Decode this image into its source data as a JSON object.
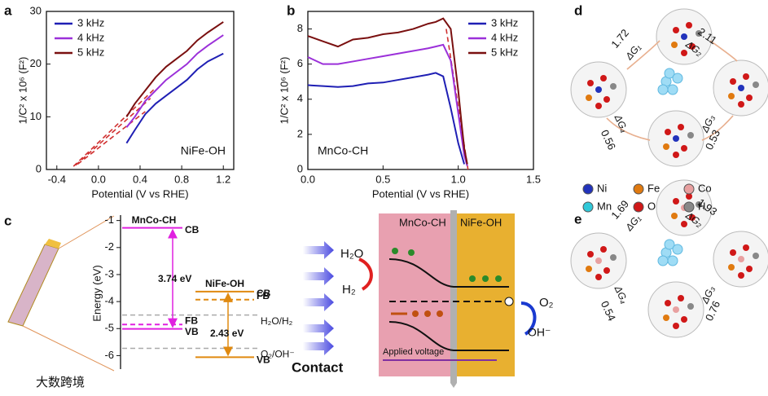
{
  "panel_labels": [
    "a",
    "b",
    "c",
    "d",
    "e"
  ],
  "chart_data": [
    {
      "type": "line",
      "xlabel": "Potential (V vs RHE)",
      "ylabel": "1/C² x 10⁶ (F²)",
      "annotation": "NiFe-OH",
      "annotation_color": "#1a1a9a",
      "legend": "upper left",
      "x": [
        0.27,
        0.35,
        0.45,
        0.55,
        0.65,
        0.75,
        0.85,
        0.95,
        1.05,
        1.2
      ],
      "series": [
        {
          "name": "3 kHz",
          "color": "#1f1fb4",
          "values": [
            5,
            7.5,
            10.5,
            12.5,
            14,
            15.5,
            17,
            19,
            20.5,
            22
          ]
        },
        {
          "name": "4 kHz",
          "color": "#9b30d9",
          "values": [
            8,
            10,
            13,
            15,
            17,
            18.5,
            20,
            22,
            23.5,
            25.5
          ]
        },
        {
          "name": "5 kHz",
          "color": "#7a1010",
          "values": [
            10,
            12.5,
            15,
            17.5,
            19.5,
            21,
            22.5,
            24.5,
            26,
            28
          ]
        }
      ],
      "fit_color": "#d03030",
      "fits": [
        {
          "x": [
            -0.2,
            0.45
          ],
          "values": [
            1,
            11
          ]
        },
        {
          "x": [
            -0.22,
            0.5
          ],
          "values": [
            0.8,
            13.5
          ]
        },
        {
          "x": [
            -0.24,
            0.55
          ],
          "values": [
            0.6,
            15.5
          ]
        }
      ],
      "xlim": [
        -0.5,
        1.3
      ],
      "xticks": [
        -0.4,
        {
          "value": 0,
          "label": "0.0"
        },
        0.4,
        0.8,
        1.2
      ],
      "ylim": [
        0,
        30
      ],
      "yticks": [
        0,
        10,
        20,
        30
      ]
    },
    {
      "type": "line",
      "xlabel": "Potential (V vs RHE)",
      "ylabel": "1/C² x 10⁶ (F²)",
      "annotation": "MnCo-CH",
      "annotation_color": "#1aa08a",
      "legend": "upper right",
      "x": [
        0,
        0.1,
        0.2,
        0.3,
        0.4,
        0.5,
        0.6,
        0.7,
        0.8,
        0.85,
        0.9,
        0.95,
        1.0,
        1.02,
        1.04,
        1.06
      ],
      "series": [
        {
          "name": "3 kHz",
          "color": "#1f1fb4",
          "values": [
            4.8,
            4.75,
            4.7,
            4.75,
            4.9,
            4.95,
            5.1,
            5.25,
            5.4,
            5.5,
            5.3,
            3.5,
            1.5,
            0.9,
            0.3,
            null
          ]
        },
        {
          "name": "4 kHz",
          "color": "#9b30d9",
          "values": [
            6.4,
            6.0,
            6.0,
            6.15,
            6.3,
            6.45,
            6.6,
            6.75,
            6.9,
            7.0,
            7.1,
            6.2,
            3.2,
            2,
            0.8,
            0.2
          ]
        },
        {
          "name": "5 kHz",
          "color": "#7a1010",
          "values": [
            7.6,
            7.3,
            7.0,
            7.4,
            7.5,
            7.7,
            7.8,
            8.0,
            8.3,
            8.4,
            8.6,
            8.0,
            4.5,
            2.8,
            1.2,
            0.3
          ]
        }
      ],
      "fit_color": "#d03030",
      "fits": [
        {
          "x": [
            0.92,
            1.065
          ],
          "values": [
            8.0,
            0
          ]
        }
      ],
      "xlim": [
        0,
        1.5
      ],
      "xticks": [
        {
          "value": 0,
          "label": "0.0"
        },
        0.5,
        {
          "value": 1,
          "label": "1.0"
        },
        1.5
      ],
      "ylim": [
        0,
        9
      ],
      "yticks": [
        0,
        2,
        4,
        6,
        8
      ]
    },
    {
      "type": "levels",
      "ylabel": "Energy (eV)",
      "ylim": [
        -0.8,
        -6.5
      ],
      "yticks": [
        -1,
        -2,
        -3,
        -4,
        -5,
        -6
      ],
      "materials": [
        {
          "name": "MnCo-CH",
          "color": "#e020e0",
          "gap": "3.74 eV",
          "levels": [
            {
              "label": "CB",
              "value": -1.27,
              "style": "solid"
            },
            {
              "label": "FB",
              "value": -4.85,
              "style": "dashed"
            },
            {
              "label": "VB",
              "value": -5.01,
              "style": "solid"
            }
          ]
        },
        {
          "name": "NiFe-OH",
          "color": "#e08a10",
          "gap": "2.43 eV",
          "levels": [
            {
              "label": "CB",
              "value": -3.63,
              "style": "solid"
            },
            {
              "label": "FB",
              "value": -3.93,
              "style": "dashed"
            },
            {
              "label": "VB",
              "value": -6.06,
              "style": "solid"
            }
          ]
        }
      ],
      "references": [
        {
          "label": "H₂O/H₂",
          "value": -4.5
        },
        {
          "label": "O₂/OH⁻",
          "value": -5.73
        }
      ],
      "reference_color": "#aaaaaa"
    }
  ],
  "schematic": {
    "left": "MnCo-CH",
    "right": "NiFe-OH",
    "contact": "Contact",
    "h2o": "H₂O",
    "h2": "H₂",
    "o2": "O₂",
    "oh": "OH⁻",
    "voltage": "Applied voltage"
  },
  "legend_atoms": [
    {
      "name": "Ni",
      "color": "#2233bb"
    },
    {
      "name": "Fe",
      "color": "#e07a10"
    },
    {
      "name": "Co",
      "color": "#e8a0a0"
    },
    {
      "name": "Mn",
      "color": "#30c8d8"
    },
    {
      "name": "O",
      "color": "#d01818"
    },
    {
      "name": "H",
      "color": "#888888"
    }
  ],
  "cycles": [
    {
      "steps": [
        {
          "value": 1.72,
          "label": "ΔG₁"
        },
        {
          "value": 2.11,
          "label": "ΔG₂"
        },
        {
          "value": 0.53,
          "label": "ΔG₃"
        },
        {
          "value": 0.56,
          "label": "ΔG₄"
        }
      ]
    },
    {
      "steps": [
        {
          "value": 1.69,
          "label": "ΔG₁"
        },
        {
          "value": 1.93,
          "label": "ΔG₂"
        },
        {
          "value": 0.76,
          "label": "ΔG₃"
        },
        {
          "value": 0.54,
          "label": "ΔG₄"
        }
      ]
    }
  ],
  "watermark": "大数跨境"
}
